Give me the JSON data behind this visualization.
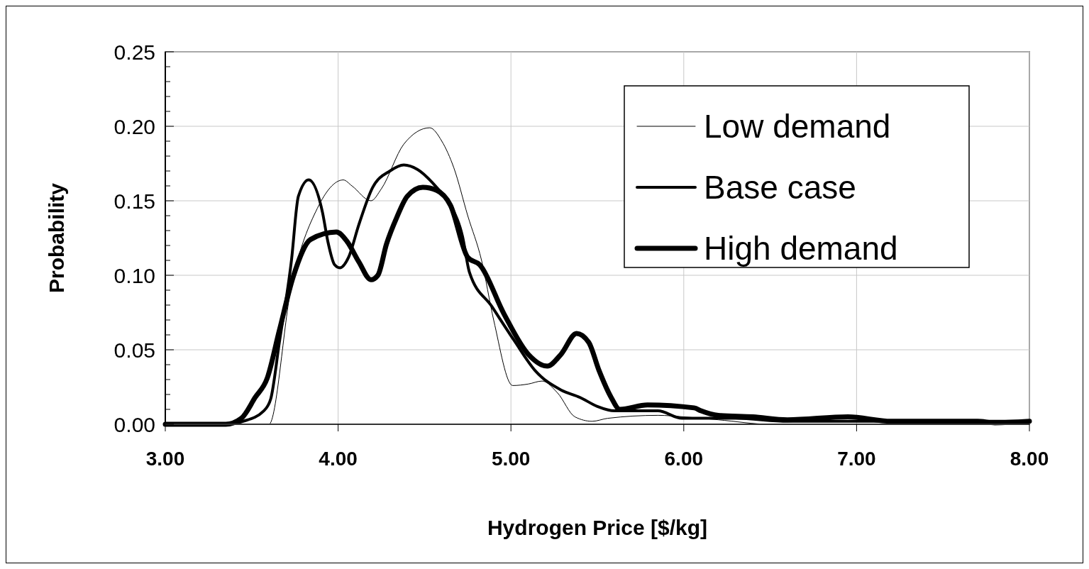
{
  "chart_data": {
    "type": "line",
    "xlabel": "Hydrogen Price [$/kg]",
    "ylabel": "Probability",
    "xlim": [
      3,
      8
    ],
    "ylim": [
      0,
      0.25
    ],
    "xticks": [
      {
        "value": 3,
        "label": "3.00"
      },
      {
        "value": 4,
        "label": "4.00"
      },
      {
        "value": 5,
        "label": "5.00"
      },
      {
        "value": 6,
        "label": "6.00"
      },
      {
        "value": 7,
        "label": "7.00"
      },
      {
        "value": 8,
        "label": "8.00"
      }
    ],
    "yticks": [
      {
        "value": 0,
        "label": "0.00"
      },
      {
        "value": 0.05,
        "label": "0.05"
      },
      {
        "value": 0.1,
        "label": "0.10"
      },
      {
        "value": 0.15,
        "label": "0.15"
      },
      {
        "value": 0.2,
        "label": "0.20"
      },
      {
        "value": 0.25,
        "label": "0.25"
      }
    ],
    "grid": true,
    "legend": "top right",
    "marker": "none",
    "line_style": "solid",
    "series": [
      {
        "name": "Low demand",
        "color": "#000000",
        "x": [
          3,
          3.3,
          3.6,
          3.73,
          3.88,
          4.03,
          4.08,
          4.19,
          4.25,
          4.38,
          4.53,
          4.6,
          4.67,
          4.75,
          4.83,
          4.9,
          5.01,
          5.1,
          5.18,
          5.27,
          5.37,
          5.47,
          5.56,
          5.85,
          6,
          6.2,
          6.5,
          8
        ],
        "values": [
          0,
          0,
          0,
          0.093,
          0.145,
          0.164,
          0.16,
          0.15,
          0.158,
          0.188,
          0.199,
          0.19,
          0.172,
          0.14,
          0.11,
          0.07,
          0.026,
          0.027,
          0.029,
          0.021,
          0.005,
          0.002,
          0.004,
          0.006,
          0.005,
          0.003,
          0,
          0
        ]
      },
      {
        "name": "Base case",
        "color": "#000000",
        "x": [
          3,
          3.35,
          3.45,
          3.57,
          3.61,
          3.66,
          3.73,
          3.77,
          3.83,
          3.91,
          3.94,
          3.98,
          4.01,
          4.06,
          4.12,
          4.2,
          4.3,
          4.38,
          4.46,
          4.57,
          4.65,
          4.72,
          4.76,
          4.89,
          5.02,
          5.14,
          5.29,
          5.4,
          5.5,
          5.6,
          5.85,
          5.99,
          6.3,
          6.6,
          8
        ],
        "values": [
          0,
          0,
          0.002,
          0.009,
          0.017,
          0.055,
          0.11,
          0.153,
          0.164,
          0.142,
          0.123,
          0.107,
          0.105,
          0.112,
          0.134,
          0.159,
          0.17,
          0.174,
          0.171,
          0.159,
          0.147,
          0.126,
          0.102,
          0.079,
          0.056,
          0.036,
          0.023,
          0.018,
          0.012,
          0.009,
          0.009,
          0.004,
          0.004,
          0.002,
          0.002
        ]
      },
      {
        "name": "High demand",
        "color": "#000000",
        "x": [
          3,
          3.35,
          3.44,
          3.52,
          3.59,
          3.66,
          3.74,
          3.84,
          3.99,
          4.05,
          4.12,
          4.19,
          4.23,
          4.28,
          4.34,
          4.4,
          4.49,
          4.57,
          4.65,
          4.75,
          4.82,
          4.96,
          5.1,
          5.21,
          5.29,
          5.38,
          5.45,
          5.51,
          5.58,
          5.63,
          5.79,
          6.06,
          6.1,
          6.2,
          6.4,
          6.6,
          6.95,
          7.2,
          7.7,
          7.8,
          8
        ],
        "values": [
          0,
          0,
          0.004,
          0.018,
          0.031,
          0.063,
          0.099,
          0.124,
          0.129,
          0.123,
          0.109,
          0.097,
          0.1,
          0.121,
          0.139,
          0.153,
          0.159,
          0.157,
          0.147,
          0.112,
          0.107,
          0.074,
          0.047,
          0.039,
          0.047,
          0.061,
          0.055,
          0.036,
          0.018,
          0.01,
          0.013,
          0.011,
          0.009,
          0.006,
          0.005,
          0.003,
          0.005,
          0.002,
          0.002,
          0.001,
          0.002
        ]
      }
    ]
  }
}
